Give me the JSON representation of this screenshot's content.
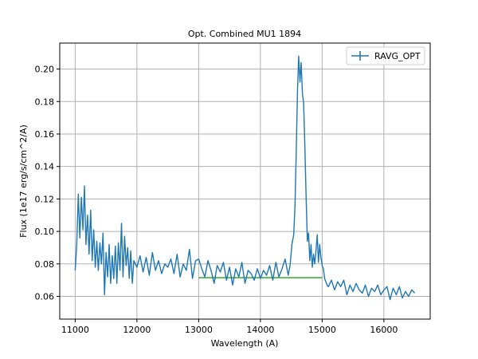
{
  "chart_data": {
    "type": "line",
    "title": "Opt. Combined MU1 1894",
    "xlabel": "Wavelength (A)",
    "ylabel": "Flux (1e17 erg/s/cm^2/A)",
    "xlim": [
      10750,
      16750
    ],
    "ylim": [
      0.046,
      0.216
    ],
    "x_ticks": [
      11000,
      12000,
      13000,
      14000,
      15000,
      16000
    ],
    "y_ticks": [
      0.06,
      0.08,
      0.1,
      0.12,
      0.14,
      0.16,
      0.18,
      0.2
    ],
    "x_tick_labels": [
      "11000",
      "12000",
      "13000",
      "14000",
      "15000",
      "16000"
    ],
    "y_tick_labels": [
      "0.06",
      "0.08",
      "0.10",
      "0.12",
      "0.14",
      "0.16",
      "0.18",
      "0.20"
    ],
    "grid": true,
    "legend_position": "top-right",
    "colors": {
      "series": "#1f77b4",
      "line_fit": "#2ca02c",
      "grid": "#b0b0b0"
    },
    "series": [
      {
        "name": "RAVG_OPT",
        "kind": "line",
        "x": [
          11000,
          11025,
          11050,
          11075,
          11100,
          11125,
          11150,
          11175,
          11200,
          11225,
          11250,
          11275,
          11300,
          11325,
          11350,
          11375,
          11400,
          11425,
          11450,
          11475,
          11500,
          11525,
          11550,
          11575,
          11600,
          11625,
          11650,
          11675,
          11700,
          11725,
          11750,
          11775,
          11800,
          11825,
          11850,
          11875,
          11900,
          11925,
          11950,
          11975,
          12000,
          12050,
          12100,
          12150,
          12200,
          12250,
          12300,
          12350,
          12400,
          12450,
          12500,
          12550,
          12600,
          12650,
          12700,
          12750,
          12800,
          12850,
          12900,
          12950,
          13000,
          13050,
          13100,
          13150,
          13200,
          13250,
          13300,
          13350,
          13400,
          13450,
          13500,
          13550,
          13600,
          13650,
          13700,
          13750,
          13800,
          13850,
          13900,
          13950,
          14000,
          14050,
          14100,
          14150,
          14200,
          14250,
          14300,
          14350,
          14400,
          14450,
          14480,
          14510,
          14540,
          14560,
          14580,
          14600,
          14620,
          14640,
          14660,
          14680,
          14700,
          14720,
          14740,
          14760,
          14780,
          14800,
          14820,
          14840,
          14860,
          14880,
          14900,
          14920,
          14940,
          14960,
          14980,
          15000,
          15020,
          15040,
          15060,
          15080,
          15100,
          15150,
          15200,
          15250,
          15300,
          15350,
          15400,
          15450,
          15500,
          15550,
          15600,
          15650,
          15700,
          15750,
          15800,
          15850,
          15900,
          15950,
          16000,
          16050,
          16100,
          16150,
          16200,
          16250,
          16300,
          16350,
          16400,
          16450,
          16500
        ],
        "y": [
          0.076,
          0.092,
          0.123,
          0.096,
          0.121,
          0.101,
          0.128,
          0.092,
          0.11,
          0.086,
          0.113,
          0.082,
          0.101,
          0.078,
          0.094,
          0.076,
          0.093,
          0.08,
          0.099,
          0.061,
          0.087,
          0.072,
          0.092,
          0.068,
          0.085,
          0.071,
          0.091,
          0.068,
          0.093,
          0.076,
          0.105,
          0.072,
          0.097,
          0.079,
          0.09,
          0.071,
          0.088,
          0.068,
          0.082,
          0.08,
          0.078,
          0.085,
          0.075,
          0.084,
          0.073,
          0.087,
          0.076,
          0.082,
          0.074,
          0.08,
          0.078,
          0.083,
          0.074,
          0.086,
          0.072,
          0.08,
          0.076,
          0.089,
          0.071,
          0.082,
          0.083,
          0.077,
          0.072,
          0.082,
          0.076,
          0.068,
          0.079,
          0.075,
          0.081,
          0.07,
          0.078,
          0.067,
          0.077,
          0.072,
          0.081,
          0.068,
          0.076,
          0.074,
          0.07,
          0.077,
          0.071,
          0.076,
          0.073,
          0.079,
          0.07,
          0.081,
          0.072,
          0.077,
          0.083,
          0.073,
          0.079,
          0.092,
          0.098,
          0.116,
          0.148,
          0.186,
          0.208,
          0.192,
          0.204,
          0.185,
          0.179,
          0.152,
          0.122,
          0.094,
          0.099,
          0.082,
          0.092,
          0.078,
          0.086,
          0.08,
          0.088,
          0.098,
          0.081,
          0.092,
          0.084,
          0.079,
          0.077,
          0.071,
          0.069,
          0.067,
          0.066,
          0.07,
          0.064,
          0.069,
          0.066,
          0.07,
          0.061,
          0.067,
          0.063,
          0.068,
          0.064,
          0.062,
          0.067,
          0.06,
          0.065,
          0.063,
          0.067,
          0.061,
          0.064,
          0.066,
          0.058,
          0.065,
          0.061,
          0.066,
          0.059,
          0.063,
          0.06,
          0.064,
          0.062
        ]
      },
      {
        "kind": "segment",
        "x": [
          13000,
          15000
        ],
        "y": [
          0.0715,
          0.0715
        ]
      }
    ]
  }
}
